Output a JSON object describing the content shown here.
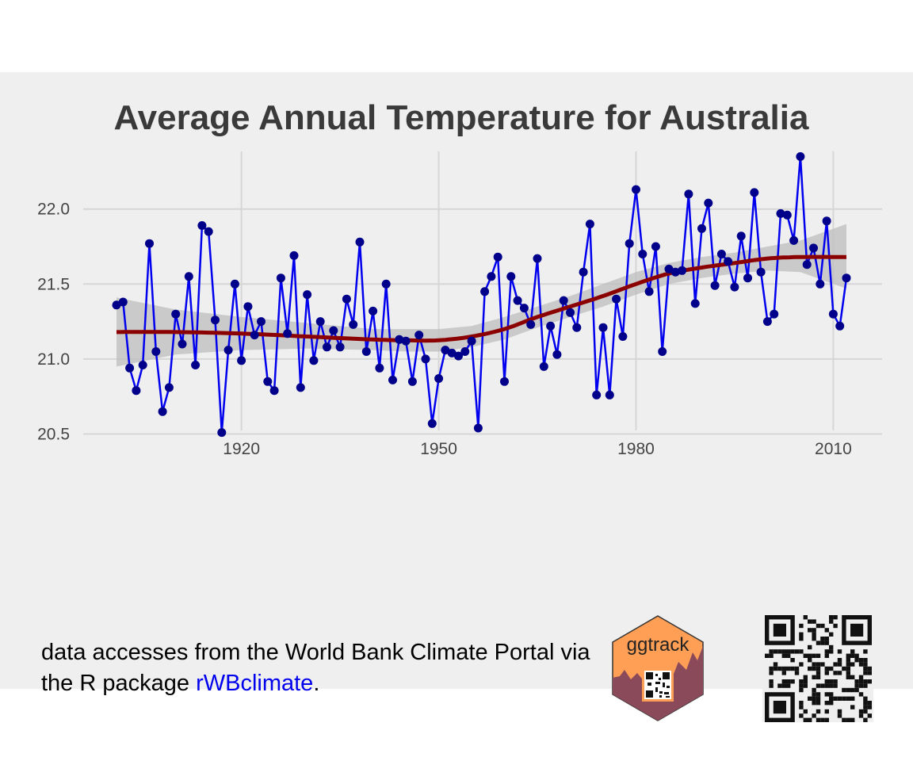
{
  "chart_data": {
    "type": "line",
    "title": "Average Annual Temperature for Australia",
    "xlabel": "",
    "ylabel": "",
    "x_ticks": [
      1920,
      1950,
      1980,
      2010
    ],
    "y_ticks": [
      "20.5",
      "21.0",
      "21.5",
      "22.0"
    ],
    "xlim": [
      1901,
      2012
    ],
    "ylim": [
      20.45,
      22.4
    ],
    "grid": true,
    "colors": {
      "line": "#0000ee",
      "points": "#00008b",
      "smooth": "#8b0000",
      "ribbon": "#bdbdbd",
      "background": "#efefef",
      "grid": "#d6d6d6"
    },
    "series": [
      {
        "x": [
          1901,
          1902,
          1903,
          1904,
          1905,
          1906,
          1907,
          1908,
          1909,
          1910,
          1911,
          1912,
          1913,
          1914,
          1915,
          1916,
          1917,
          1918,
          1919,
          1920,
          1921,
          1922,
          1923,
          1924,
          1925,
          1926,
          1927,
          1928,
          1929,
          1930,
          1931,
          1932,
          1933,
          1934,
          1935,
          1936,
          1937,
          1938,
          1939,
          1940,
          1941,
          1942,
          1943,
          1944,
          1945,
          1946,
          1947,
          1948,
          1949,
          1950,
          1951,
          1952,
          1953,
          1954,
          1955,
          1956,
          1957,
          1958,
          1959,
          1960,
          1961,
          1962,
          1963,
          1964,
          1965,
          1966,
          1967,
          1968,
          1969,
          1970,
          1971,
          1972,
          1973,
          1974,
          1975,
          1976,
          1977,
          1978,
          1979,
          1980,
          1981,
          1982,
          1983,
          1984,
          1985,
          1986,
          1987,
          1988,
          1989,
          1990,
          1991,
          1992,
          1993,
          1994,
          1995,
          1996,
          1997,
          1998,
          1999,
          2000,
          2001,
          2002,
          2003,
          2004,
          2005,
          2006,
          2007,
          2008,
          2009,
          2010,
          2011,
          2012
        ],
        "y": [
          21.36,
          21.38,
          20.94,
          20.79,
          20.96,
          21.77,
          21.05,
          20.65,
          20.81,
          21.3,
          21.1,
          21.55,
          20.96,
          21.89,
          21.85,
          21.26,
          20.51,
          21.06,
          21.5,
          20.99,
          21.35,
          21.16,
          21.25,
          20.85,
          20.79,
          21.54,
          21.17,
          21.69,
          20.81,
          21.43,
          20.99,
          21.25,
          21.08,
          21.19,
          21.08,
          21.4,
          21.23,
          21.78,
          21.05,
          21.32,
          20.94,
          21.5,
          20.86,
          21.13,
          21.12,
          20.85,
          21.16,
          21.0,
          20.57,
          20.87,
          21.06,
          21.04,
          21.02,
          21.05,
          21.12,
          20.54,
          21.45,
          21.55,
          21.68,
          20.85,
          21.55,
          21.39,
          21.34,
          21.23,
          21.67,
          20.95,
          21.22,
          21.03,
          21.39,
          21.31,
          21.21,
          21.58,
          21.9,
          20.76,
          21.21,
          20.76,
          21.4,
          21.15,
          21.77,
          22.13,
          21.7,
          21.45,
          21.75,
          21.05,
          21.6,
          21.58,
          21.59,
          22.1,
          21.37,
          21.87,
          22.04,
          21.49,
          21.7,
          21.65,
          21.48,
          21.82,
          21.54,
          22.11,
          21.58,
          21.25,
          21.3,
          21.97,
          21.96,
          21.79,
          22.35,
          21.63,
          21.74,
          21.5,
          21.92,
          21.3,
          21.22,
          21.54
        ]
      }
    ],
    "smooth": {
      "x": [
        1901,
        1910,
        1920,
        1930,
        1940,
        1945,
        1950,
        1955,
        1960,
        1965,
        1970,
        1975,
        1980,
        1985,
        1990,
        1995,
        2000,
        2005,
        2012
      ],
      "y": [
        21.18,
        21.18,
        21.17,
        21.15,
        21.13,
        21.125,
        21.125,
        21.15,
        21.2,
        21.28,
        21.35,
        21.42,
        21.5,
        21.57,
        21.61,
        21.64,
        21.67,
        21.68,
        21.68
      ],
      "upper": [
        21.41,
        21.33,
        21.28,
        21.24,
        21.2,
        21.2,
        21.2,
        21.22,
        21.28,
        21.35,
        21.42,
        21.5,
        21.58,
        21.64,
        21.68,
        21.71,
        21.75,
        21.79,
        21.9
      ],
      "lower": [
        20.95,
        21.03,
        21.06,
        21.07,
        21.06,
        21.05,
        21.05,
        21.08,
        21.13,
        21.21,
        21.28,
        21.35,
        21.43,
        21.5,
        21.54,
        21.57,
        21.59,
        21.58,
        21.47
      ]
    }
  },
  "caption": {
    "line1": "data accesses from the World Bank Climate Portal via",
    "line2_prefix": "the R package ",
    "link_text": "rWBclimate",
    "line2_suffix": "."
  },
  "logo": {
    "text": "ggtrack",
    "fill": "#ff9f55",
    "dark": "#8b4a5a"
  }
}
